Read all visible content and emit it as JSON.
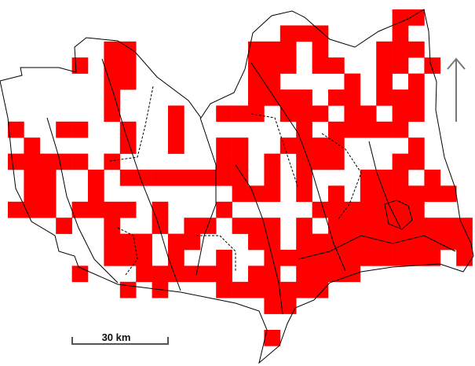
{
  "map": {
    "presence_color": "#ff0000",
    "outline_color": "#000000",
    "grid_presence_rows": [
      [
        24,
        25
      ],
      [
        17,
        18,
        19,
        24
      ],
      [
        6,
        7,
        15,
        16,
        17,
        19,
        23,
        24,
        25
      ],
      [
        4,
        6,
        7,
        15,
        16,
        17,
        19,
        20,
        23,
        24,
        26
      ],
      [
        6,
        7,
        15,
        16,
        21,
        23,
        25
      ],
      [
        6,
        15,
        16,
        17,
        18,
        20,
        21,
        23,
        24,
        25
      ],
      [
        6,
        10,
        13,
        14,
        15,
        17,
        18,
        19,
        21,
        22,
        24,
        25
      ],
      [
        0,
        3,
        4,
        7,
        10,
        18,
        20,
        21,
        22,
        23,
        24
      ],
      [
        1,
        7,
        10,
        13,
        14,
        17,
        18,
        19,
        20,
        25
      ],
      [
        0,
        1,
        2,
        3,
        4,
        6,
        13,
        14,
        16,
        18,
        19,
        20,
        24,
        25
      ],
      [
        1,
        2,
        5,
        7,
        8,
        9,
        10,
        11,
        12,
        13,
        14,
        16,
        18,
        22,
        23,
        24,
        26
      ],
      [
        1,
        2,
        5,
        14,
        15,
        16,
        18,
        20,
        22,
        23,
        24,
        25,
        26,
        27
      ],
      [
        0,
        1,
        2,
        4,
        5,
        6,
        7,
        9,
        13,
        19,
        20,
        21,
        22,
        23,
        24,
        25
      ],
      [
        3,
        6,
        9,
        11,
        12,
        14,
        15,
        16,
        18,
        20,
        21,
        22,
        23,
        24,
        25,
        26,
        27,
        28
      ],
      [
        6,
        7,
        8,
        10,
        11,
        15,
        16,
        18,
        19,
        20,
        21,
        22,
        23,
        24,
        25,
        26,
        27,
        28
      ],
      [
        6,
        7,
        8,
        10,
        13,
        16,
        17,
        18,
        19,
        20,
        21,
        22,
        23,
        24,
        25,
        26,
        28
      ],
      [
        4,
        8,
        9,
        10,
        11,
        12,
        13,
        15,
        16,
        18,
        19,
        20,
        21
      ],
      [
        7,
        9,
        13,
        14,
        15,
        16,
        17,
        18,
        19
      ],
      [
        16,
        17
      ],
      [],
      [
        16
      ]
    ]
  },
  "scale_bar": {
    "label": "30 km"
  },
  "north_arrow": {
    "icon": "north-arrow-icon",
    "color": "#777777"
  }
}
